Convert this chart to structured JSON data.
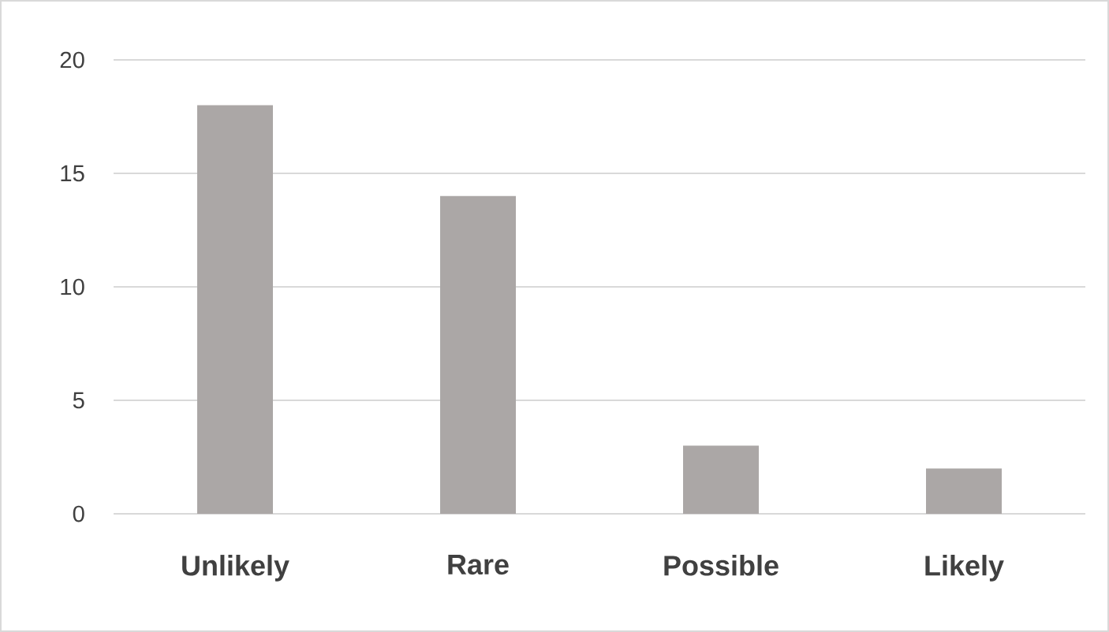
{
  "chart_data": {
    "type": "bar",
    "categories": [
      "Unlikely",
      "Rare",
      "Possible",
      "Likely"
    ],
    "values": [
      18,
      14,
      3,
      2
    ],
    "color": "#aba7a6",
    "ylim": [
      0,
      20
    ],
    "yticks": [
      0,
      5,
      10,
      15,
      20
    ],
    "grid": "y"
  }
}
